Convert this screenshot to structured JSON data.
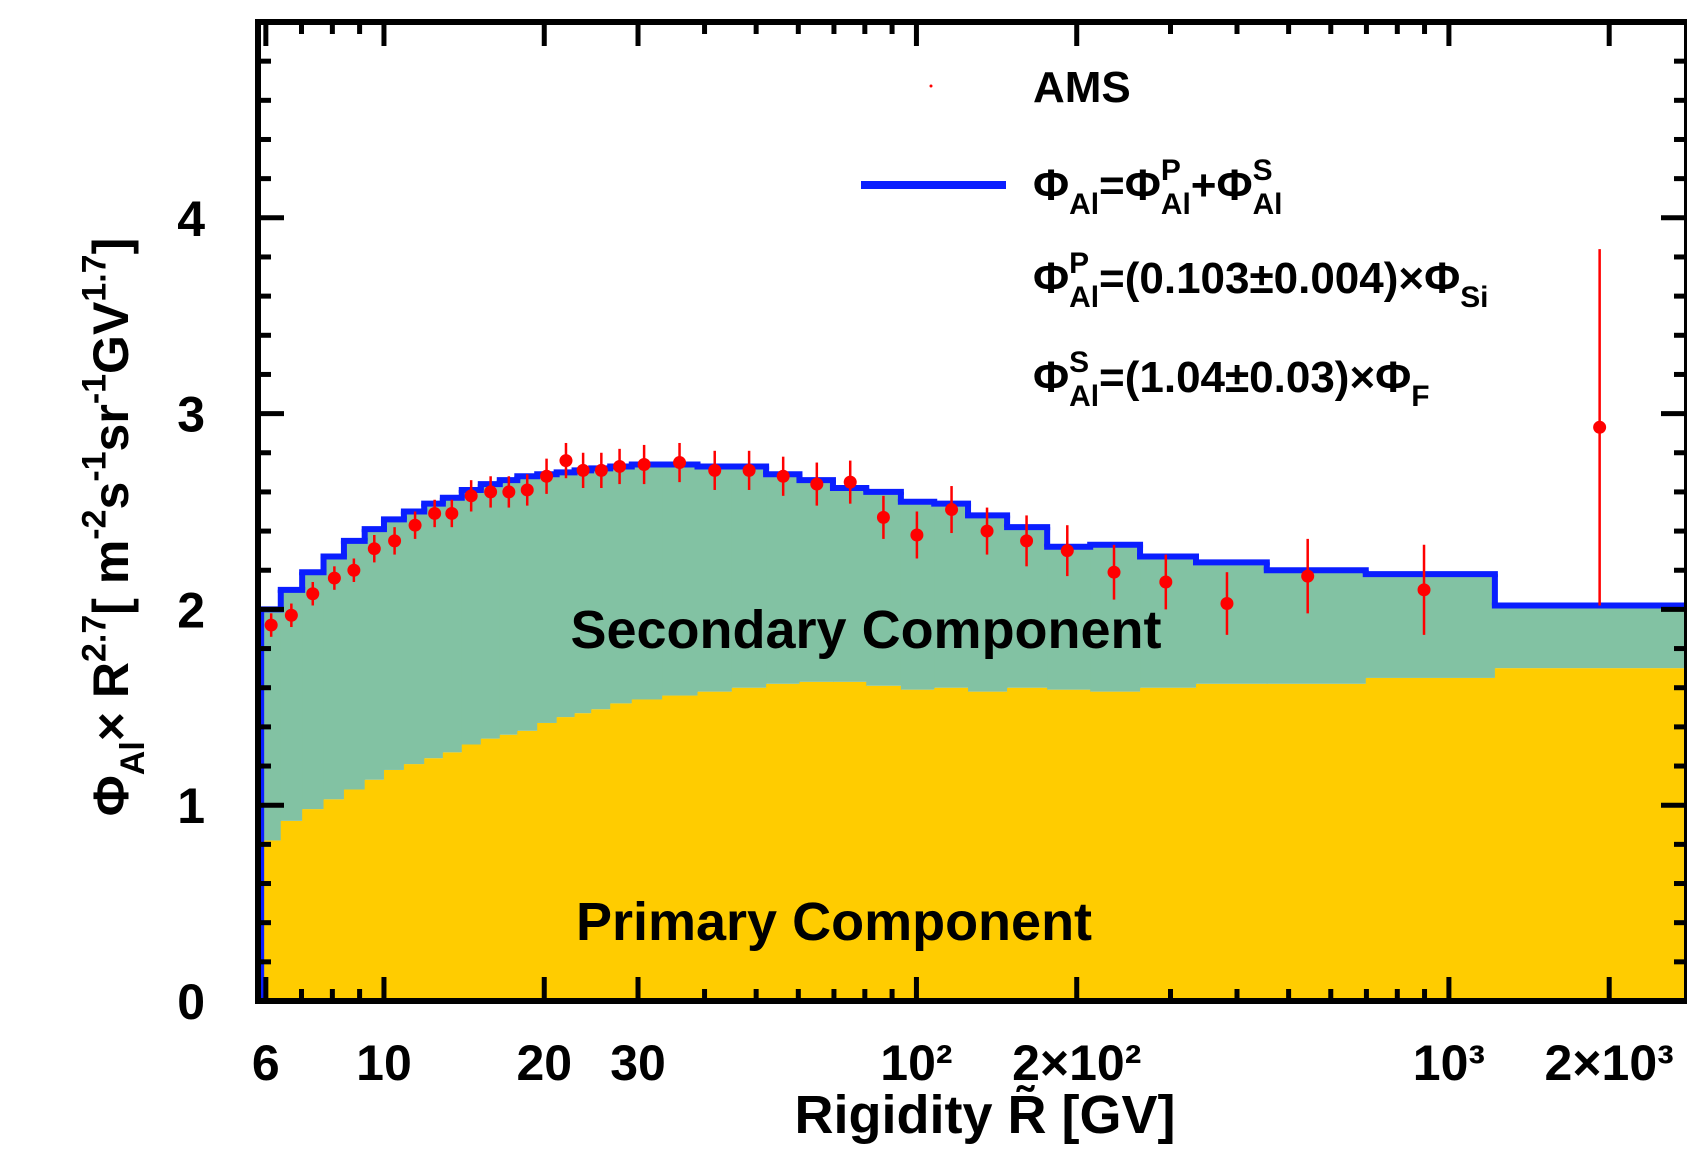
{
  "chart_data": {
    "type": "histogram",
    "xscale": "log",
    "xlim": [
      5.8,
      2800
    ],
    "ylim": [
      0,
      5
    ],
    "xticks": [
      6,
      10,
      20,
      30,
      {
        "value": 100,
        "label": "10²"
      },
      {
        "value": 200,
        "label": "2×10²"
      },
      {
        "value": 1000,
        "label": "10³"
      },
      {
        "value": 2000,
        "label": "2×10³"
      }
    ],
    "xminorticks": [
      7,
      8,
      9,
      40,
      50,
      60,
      70,
      80,
      90,
      300,
      400,
      500,
      600,
      700,
      800,
      900
    ],
    "yticks": [
      0,
      1,
      2,
      3,
      4
    ],
    "yminorticks": [
      0.2,
      0.4,
      0.6,
      0.8,
      1.2,
      1.4,
      1.6,
      1.8,
      2.2,
      2.4,
      2.6,
      2.8,
      3.2,
      3.4,
      3.6,
      3.8,
      4.2,
      4.4,
      4.6,
      4.8
    ],
    "xlabel": "Rigidity R̃ [GV]",
    "ylabel": [
      {
        "text": "Φ"
      },
      {
        "text": "Al",
        "pos": "sub"
      },
      {
        "text": " × R"
      },
      {
        "text": "2.7",
        "pos": "sup"
      },
      {
        "text": " [ m"
      },
      {
        "text": "-2",
        "pos": "sup"
      },
      {
        "text": "s"
      },
      {
        "text": "-1",
        "pos": "sup"
      },
      {
        "text": "sr"
      },
      {
        "text": "-1",
        "pos": "sup"
      },
      {
        "text": " GV"
      },
      {
        "text": "1.7",
        "pos": "sup"
      },
      {
        "text": "]"
      }
    ],
    "bins": [
      5.88,
      6.4,
      7.02,
      7.7,
      8.41,
      9.2,
      10.0,
      10.9,
      11.9,
      12.9,
      14.0,
      15.2,
      16.5,
      17.8,
      19.4,
      21.1,
      22.8,
      24.5,
      26.6,
      29.2,
      33.3,
      38.8,
      45.0,
      52.2,
      60.3,
      69.7,
      80.5,
      93.5,
      108,
      125,
      148,
      176,
      212,
      263,
      335,
      455,
      698,
      1220,
      3000
    ],
    "series": [
      {
        "name": "Primary Component",
        "color": "#ffcc00",
        "values": [
          0.82,
          0.92,
          0.98,
          1.03,
          1.08,
          1.13,
          1.18,
          1.21,
          1.24,
          1.27,
          1.31,
          1.34,
          1.36,
          1.38,
          1.42,
          1.45,
          1.47,
          1.49,
          1.52,
          1.54,
          1.56,
          1.58,
          1.6,
          1.62,
          1.63,
          1.63,
          1.61,
          1.59,
          1.6,
          1.58,
          1.6,
          1.59,
          1.58,
          1.6,
          1.62,
          1.62,
          1.65,
          1.7
        ]
      },
      {
        "name": "Secondary Component",
        "color": "#82c2a3",
        "values": [
          1.18,
          1.18,
          1.21,
          1.24,
          1.27,
          1.28,
          1.28,
          1.29,
          1.3,
          1.3,
          1.3,
          1.3,
          1.3,
          1.3,
          1.27,
          1.25,
          1.24,
          1.23,
          1.21,
          1.2,
          1.18,
          1.15,
          1.13,
          1.07,
          1.03,
          0.99,
          0.99,
          0.96,
          0.94,
          0.9,
          0.82,
          0.73,
          0.75,
          0.67,
          0.62,
          0.58,
          0.53,
          0.32
        ]
      },
      {
        "name": [
          {
            "text": "Φ"
          },
          {
            "text": "Al",
            "pos": "sub"
          },
          {
            "text": "=Φ"
          },
          {
            "text": "P",
            "pos": "sup"
          },
          {
            "text": "Al",
            "pos": "sub"
          },
          {
            "text": "+Φ"
          },
          {
            "text": "S",
            "pos": "sup"
          },
          {
            "text": "Al",
            "pos": "sub"
          }
        ],
        "color": "#0a1eff",
        "style": "step",
        "values": [
          2.0,
          2.1,
          2.19,
          2.27,
          2.35,
          2.41,
          2.46,
          2.5,
          2.54,
          2.57,
          2.61,
          2.64,
          2.66,
          2.68,
          2.69,
          2.7,
          2.71,
          2.72,
          2.73,
          2.74,
          2.74,
          2.73,
          2.73,
          2.69,
          2.66,
          2.62,
          2.6,
          2.55,
          2.54,
          2.48,
          2.42,
          2.32,
          2.33,
          2.27,
          2.24,
          2.2,
          2.18,
          2.02
        ]
      },
      {
        "name": "AMS",
        "color": "#ff0000",
        "style": "points",
        "x": [
          6.14,
          6.7,
          7.35,
          8.07,
          8.78,
          9.59,
          10.47,
          11.44,
          12.45,
          13.41,
          14.58,
          15.86,
          17.16,
          18.58,
          20.2,
          21.97,
          23.66,
          25.6,
          27.7,
          30.8,
          35.9,
          41.8,
          48.5,
          56.2,
          65.0,
          75.1,
          86.7,
          100.2,
          116.4,
          135.7,
          161,
          192,
          235,
          294,
          383,
          543,
          898,
          1919
        ],
        "values": [
          1.92,
          1.97,
          2.08,
          2.16,
          2.2,
          2.31,
          2.35,
          2.43,
          2.49,
          2.49,
          2.58,
          2.6,
          2.6,
          2.61,
          2.68,
          2.76,
          2.71,
          2.71,
          2.73,
          2.74,
          2.75,
          2.71,
          2.71,
          2.68,
          2.64,
          2.65,
          2.47,
          2.38,
          2.51,
          2.4,
          2.35,
          2.3,
          2.19,
          2.14,
          2.03,
          2.17,
          2.1,
          2.93
        ],
        "errors": [
          0.06,
          0.06,
          0.06,
          0.06,
          0.06,
          0.07,
          0.07,
          0.07,
          0.07,
          0.07,
          0.08,
          0.08,
          0.08,
          0.08,
          0.09,
          0.09,
          0.09,
          0.09,
          0.09,
          0.1,
          0.1,
          0.1,
          0.1,
          0.1,
          0.11,
          0.11,
          0.11,
          0.12,
          0.12,
          0.12,
          0.13,
          0.13,
          0.14,
          0.14,
          0.16,
          0.19,
          0.23,
          0.91
        ]
      }
    ],
    "annotations": [
      [
        {
          "text": "Φ"
        },
        {
          "text": "P",
          "pos": "sup"
        },
        {
          "text": "Al",
          "pos": "sub"
        },
        {
          "text": "=(0.103±0.004)×Φ"
        },
        {
          "text": "Si",
          "pos": "sub"
        }
      ],
      [
        {
          "text": "Φ"
        },
        {
          "text": "S",
          "pos": "sup"
        },
        {
          "text": "Al",
          "pos": "sub"
        },
        {
          "text": "=(1.04±0.03)×Φ"
        },
        {
          "text": "F",
          "pos": "sub"
        }
      ]
    ]
  }
}
